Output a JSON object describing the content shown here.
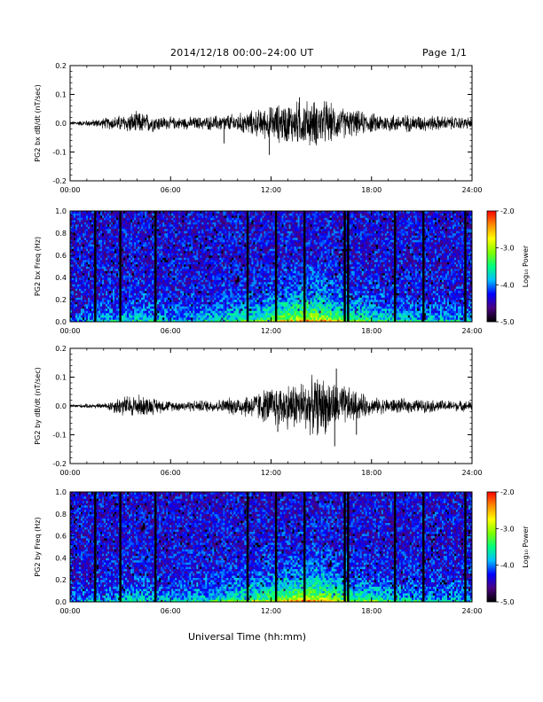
{
  "header": {
    "title": "2014/12/18  00:00–24:00 UT",
    "page": "Page 1/1"
  },
  "x_axis_title": "Universal Time (hh:mm)",
  "colorbar": {
    "label": "Log₁₀ Power",
    "ticks": [
      "-2.0",
      "-3.0",
      "-4.0",
      "-5.0"
    ],
    "range": [
      -5.0,
      -2.0
    ],
    "colormap": [
      "#000000",
      "#4b0082",
      "#0000ff",
      "#00bfff",
      "#00ff7f",
      "#7fff00",
      "#ffff00",
      "#ff8c00",
      "#ff0000"
    ]
  },
  "chart_data": [
    {
      "type": "line",
      "ylabel": "PG2 bx dB/dt (nT/sec)",
      "ylim": [
        -0.2,
        0.2
      ],
      "yticks": [
        "0.2",
        "0.1",
        "0.0",
        "-0.1",
        "-0.2"
      ],
      "xlim": [
        "00:00",
        "24:00"
      ],
      "xticks": [
        "00:00",
        "06:00",
        "12:00",
        "18:00",
        "24:00"
      ],
      "amplitude_envelope": [
        {
          "t": 0,
          "amp": 0.005
        },
        {
          "t": 1.5,
          "amp": 0.012
        },
        {
          "t": 3,
          "amp": 0.025
        },
        {
          "t": 4,
          "amp": 0.035
        },
        {
          "t": 6,
          "amp": 0.018
        },
        {
          "t": 8,
          "amp": 0.02
        },
        {
          "t": 10,
          "amp": 0.03
        },
        {
          "t": 11.5,
          "amp": 0.045
        },
        {
          "t": 12.5,
          "amp": 0.06
        },
        {
          "t": 14,
          "amp": 0.07
        },
        {
          "t": 15,
          "amp": 0.07
        },
        {
          "t": 16,
          "amp": 0.05
        },
        {
          "t": 18,
          "amp": 0.03
        },
        {
          "t": 21,
          "amp": 0.025
        },
        {
          "t": 24,
          "amp": 0.018
        }
      ],
      "peaks": [
        {
          "t": 11.9,
          "value": -0.11
        },
        {
          "t": 13.7,
          "value": 0.09
        },
        {
          "t": 15.3,
          "value": 0.075
        },
        {
          "t": 9.2,
          "value": -0.07
        }
      ]
    },
    {
      "type": "heatmap",
      "ylabel": "PG2 bx Freq (Hz)",
      "ylim": [
        0.0,
        1.0
      ],
      "yticks": [
        "1.0",
        "0.8",
        "0.6",
        "0.4",
        "0.2",
        "0.0"
      ],
      "xlim": [
        "00:00",
        "24:00"
      ],
      "xticks": [
        "00:00",
        "06:00",
        "12:00",
        "18:00",
        "24:00"
      ],
      "zlim": [
        -5.0,
        -2.0
      ],
      "data_gaps_hours": [
        1.5,
        3.0,
        5.1,
        10.6,
        12.3,
        14.0,
        16.4,
        16.6,
        19.4,
        21.1,
        23.6
      ],
      "activity_envelope": [
        {
          "t": 0,
          "level": 0.15
        },
        {
          "t": 2,
          "level": 0.3
        },
        {
          "t": 4,
          "level": 0.4
        },
        {
          "t": 6,
          "level": 0.3
        },
        {
          "t": 8,
          "level": 0.35
        },
        {
          "t": 10,
          "level": 0.5
        },
        {
          "t": 12,
          "level": 0.65
        },
        {
          "t": 14,
          "level": 0.95
        },
        {
          "t": 15,
          "level": 0.9
        },
        {
          "t": 17,
          "level": 0.6
        },
        {
          "t": 20,
          "level": 0.4
        },
        {
          "t": 24,
          "level": 0.3
        }
      ]
    },
    {
      "type": "line",
      "ylabel": "PG2 by dB/dt (nT/sec)",
      "ylim": [
        -0.2,
        0.2
      ],
      "yticks": [
        "0.2",
        "0.1",
        "0.0",
        "-0.1",
        "-0.2"
      ],
      "xlim": [
        "00:00",
        "24:00"
      ],
      "xticks": [
        "00:00",
        "06:00",
        "12:00",
        "18:00",
        "24:00"
      ],
      "amplitude_envelope": [
        {
          "t": 0,
          "amp": 0.005
        },
        {
          "t": 2,
          "amp": 0.008
        },
        {
          "t": 3,
          "amp": 0.03
        },
        {
          "t": 4,
          "amp": 0.035
        },
        {
          "t": 6,
          "amp": 0.015
        },
        {
          "t": 9,
          "amp": 0.02
        },
        {
          "t": 11,
          "amp": 0.04
        },
        {
          "t": 12,
          "amp": 0.06
        },
        {
          "t": 14,
          "amp": 0.08
        },
        {
          "t": 15,
          "amp": 0.09
        },
        {
          "t": 16.5,
          "amp": 0.06
        },
        {
          "t": 18,
          "amp": 0.025
        },
        {
          "t": 24,
          "amp": 0.015
        }
      ],
      "peaks": [
        {
          "t": 15.8,
          "value": -0.14
        },
        {
          "t": 15.9,
          "value": 0.13
        },
        {
          "t": 12.4,
          "value": -0.09
        },
        {
          "t": 17.1,
          "value": -0.1
        }
      ]
    },
    {
      "type": "heatmap",
      "ylabel": "PG2 by Freq (Hz)",
      "ylim": [
        0.0,
        1.0
      ],
      "yticks": [
        "1.0",
        "0.8",
        "0.6",
        "0.4",
        "0.2",
        "0.0"
      ],
      "xlim": [
        "00:00",
        "24:00"
      ],
      "xticks": [
        "00:00",
        "06:00",
        "12:00",
        "18:00",
        "24:00"
      ],
      "zlim": [
        -5.0,
        -2.0
      ],
      "data_gaps_hours": [
        1.5,
        3.0,
        5.1,
        10.6,
        12.3,
        14.0,
        16.4,
        16.6,
        19.4,
        21.1,
        23.6
      ],
      "activity_envelope": [
        {
          "t": 0,
          "level": 0.15
        },
        {
          "t": 2,
          "level": 0.3
        },
        {
          "t": 4,
          "level": 0.4
        },
        {
          "t": 6,
          "level": 0.3
        },
        {
          "t": 8,
          "level": 0.4
        },
        {
          "t": 10,
          "level": 0.55
        },
        {
          "t": 12,
          "level": 0.7
        },
        {
          "t": 14,
          "level": 0.95
        },
        {
          "t": 15,
          "level": 0.9
        },
        {
          "t": 17,
          "level": 0.6
        },
        {
          "t": 20,
          "level": 0.4
        },
        {
          "t": 24,
          "level": 0.3
        }
      ]
    }
  ]
}
